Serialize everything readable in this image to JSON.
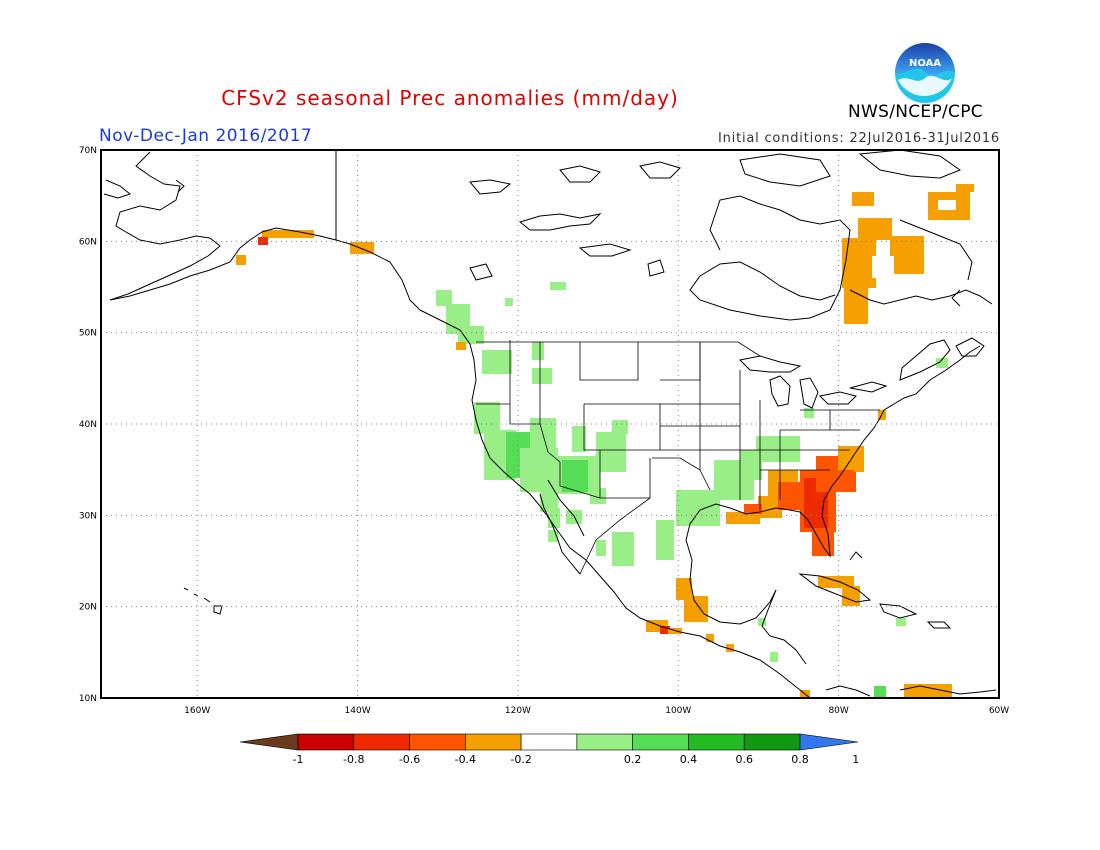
{
  "header": {
    "title": "CFSv2 seasonal Prec anomalies (mm/day)",
    "season": "Nov-Dec-Jan 2016/2017",
    "initial_conditions": "Initial conditions: 22Jul2016-31Jul2016",
    "agency": "NWS/NCEP/CPC",
    "logo_text": "NOAA"
  },
  "map": {
    "lon_range": [
      -172,
      -60
    ],
    "lat_range": [
      10,
      70
    ],
    "lat_labels": [
      "10N",
      "20N",
      "30N",
      "40N",
      "50N",
      "60N",
      "70N"
    ],
    "lon_labels": [
      "160W",
      "140W",
      "120W",
      "100W",
      "80W",
      "60W"
    ],
    "gridlines": "dotted"
  },
  "colorbar": {
    "labels": [
      "-1",
      "-0.8",
      "-0.6",
      "-0.4",
      "-0.2",
      "0.2",
      "0.4",
      "0.6",
      "0.8",
      "1"
    ],
    "colors": [
      "#6b3a1e",
      "#c80000",
      "#ee2a00",
      "#ff5500",
      "#f5a000",
      "#ffffff",
      "#99ee88",
      "#55dd55",
      "#22bb22",
      "#119911",
      "#3377ee"
    ]
  },
  "colors": {
    "title": "#e00000",
    "season": "#1a3adf",
    "dry_light": "#f5a000",
    "dry_medium": "#ff5500",
    "dry_strong": "#ee2a00",
    "wet_light": "#99ee88",
    "wet_medium": "#55dd55"
  }
}
